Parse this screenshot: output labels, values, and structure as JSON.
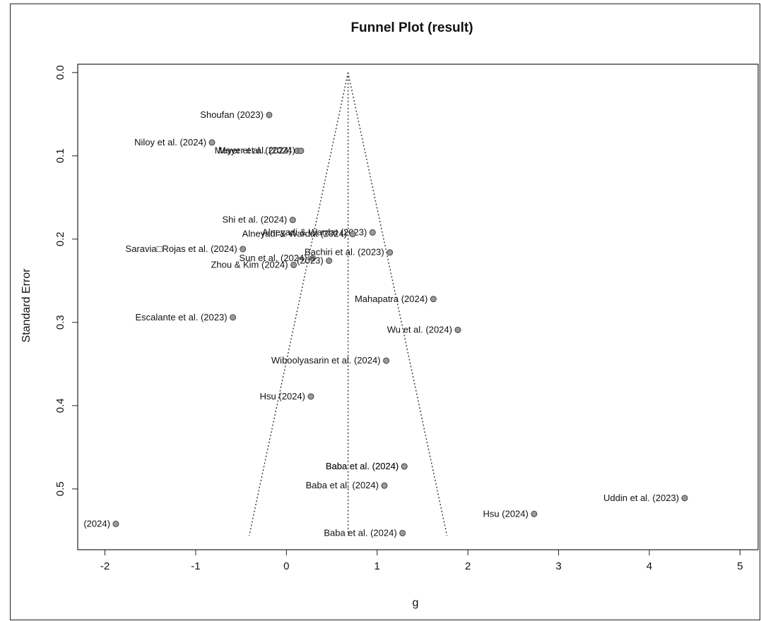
{
  "chart_data": {
    "type": "scatter",
    "title": "Funnel Plot (result)",
    "xlabel": "g",
    "ylabel": "Standard Error",
    "xlim": [
      -2.3,
      5.2
    ],
    "ylim": [
      0.573,
      -0.01
    ],
    "y_reversed": true,
    "x_ticks": [
      -2,
      -1,
      0,
      1,
      2,
      3,
      4,
      5
    ],
    "y_ticks": [
      0.0,
      0.1,
      0.2,
      0.3,
      0.4,
      0.5
    ],
    "x_tick_labels": [
      "-2",
      "-1",
      "0",
      "1",
      "2",
      "3",
      "4",
      "5"
    ],
    "y_tick_labels": [
      "0.0",
      "0.1",
      "0.2",
      "0.3",
      "0.4",
      "0.5"
    ],
    "pooled_estimate": 0.68,
    "funnel": {
      "apex_se": 0.0,
      "bottom_se": 0.556,
      "left_x": -0.41,
      "right_x": 1.77
    },
    "point_color": "#9a9a9a",
    "points": [
      {
        "label": "Shoufan (2023)",
        "x": -0.19,
        "y": 0.051
      },
      {
        "label": "Niloy et al. (2024)",
        "x": -0.82,
        "y": 0.084
      },
      {
        "label": "Meyer et al. (2024)",
        "x": 0.12,
        "y": 0.094
      },
      {
        "label": "Mayer et al. (2024)",
        "x": 0.16,
        "y": 0.094
      },
      {
        "label": "Shi et al. (2024)",
        "x": 0.07,
        "y": 0.177
      },
      {
        "label": "Alneyadi & Wardat (2023)",
        "x": 0.95,
        "y": 0.192
      },
      {
        "label": "Alneyadi & Wardat (2024)",
        "x": 0.73,
        "y": 0.194
      },
      {
        "label": "Saravia□Rojas et al. (2024)",
        "x": -0.48,
        "y": 0.212
      },
      {
        "label": "Bachiri et al. (2023)",
        "x": 1.14,
        "y": 0.216
      },
      {
        "label": "Sun et al. (2024)",
        "x": 0.29,
        "y": 0.223
      },
      {
        "label": "(2023)",
        "x": 0.47,
        "y": 0.226
      },
      {
        "label": "Zhou & Kim (2024)",
        "x": 0.08,
        "y": 0.231
      },
      {
        "label": "Mahapatra (2024)",
        "x": 1.62,
        "y": 0.272
      },
      {
        "label": "Escalante et al. (2023)",
        "x": -0.59,
        "y": 0.294
      },
      {
        "label": "Wu et al. (2024)",
        "x": 1.89,
        "y": 0.309
      },
      {
        "label": "Wiboolyasarin et al. (2024)",
        "x": 1.1,
        "y": 0.346
      },
      {
        "label": "Hsu (2024)",
        "x": 0.27,
        "y": 0.389
      },
      {
        "label": "Baba et al. (2024)",
        "x": 1.3,
        "y": 0.473
      },
      {
        "label": "Baba et al. (2024)",
        "x": 1.3,
        "y": 0.473
      },
      {
        "label": "Baba et al. (2024)",
        "x": 1.08,
        "y": 0.496
      },
      {
        "label": "Uddin et al. (2023)",
        "x": 4.39,
        "y": 0.511
      },
      {
        "label": "Hsu (2024)",
        "x": 2.73,
        "y": 0.53
      },
      {
        "label": "(2024)",
        "x": -1.88,
        "y": 0.542
      },
      {
        "label": "Baba et al. (2024)",
        "x": 1.28,
        "y": 0.553
      }
    ]
  }
}
